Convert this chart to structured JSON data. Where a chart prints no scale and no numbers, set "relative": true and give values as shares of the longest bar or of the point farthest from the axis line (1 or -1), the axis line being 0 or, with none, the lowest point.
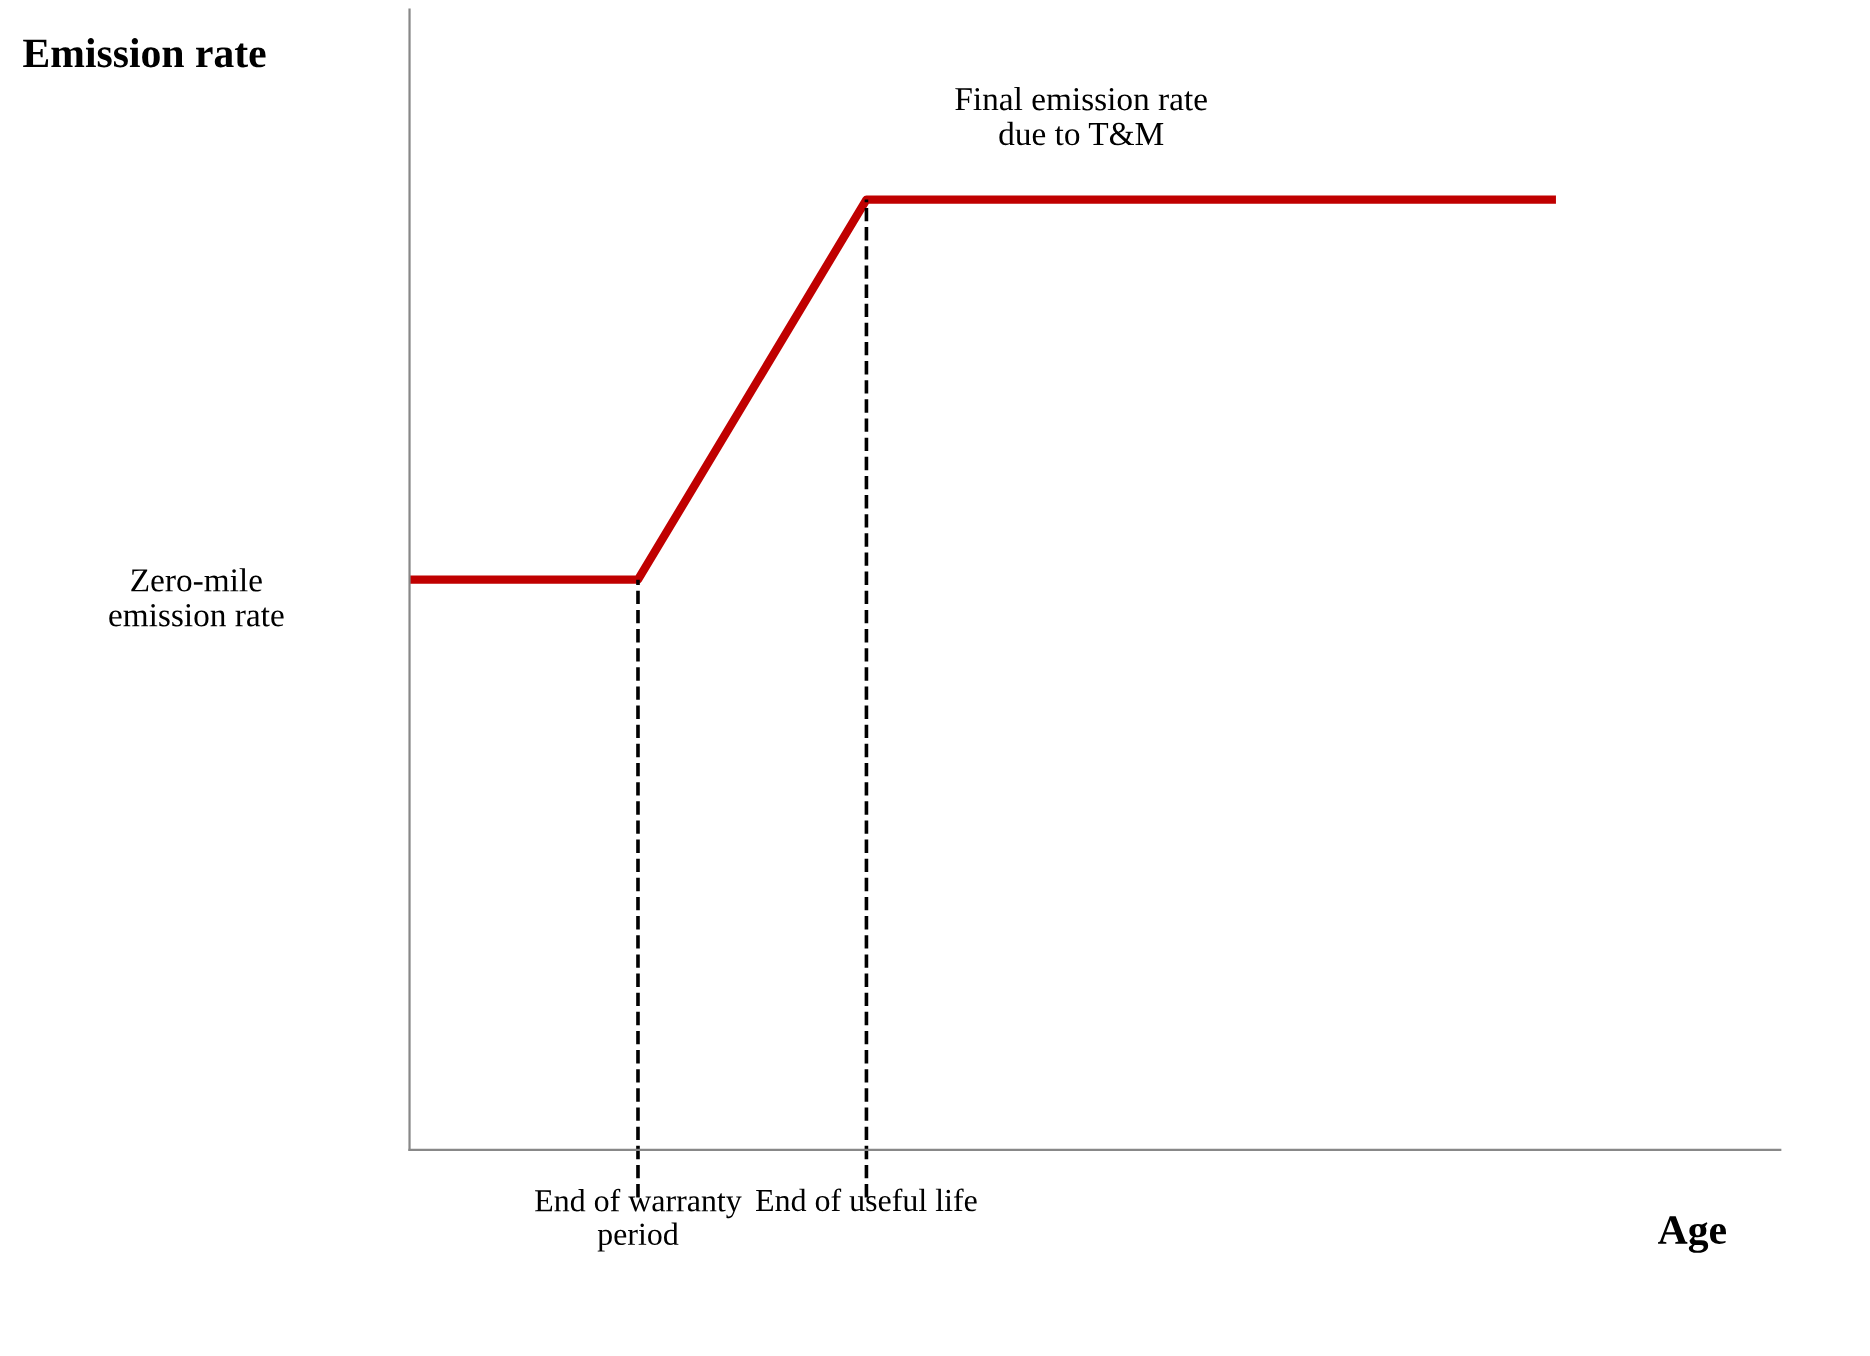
{
  "chart_data": {
    "type": "line",
    "relative": true,
    "xlabel": "Age",
    "ylabel": "Emission rate",
    "categories": [
      null,
      "End of warranty\nperiod",
      "End of useful life",
      null,
      null,
      null
    ],
    "series": [
      {
        "color": "#c00000",
        "values": [
          0.6,
          0.6,
          1,
          1,
          1,
          1
        ]
      }
    ],
    "ref_lines": [
      {
        "axis": "x",
        "value": "End of warranty\nperiod",
        "line_style": "dashed",
        "color": "#000000"
      },
      {
        "axis": "x",
        "value": "End of useful life",
        "line_style": "dashed",
        "color": "#000000"
      }
    ],
    "annotations": [
      "Zero-mile\nemission rate",
      {
        "text": "Final emission rate\ndue to T&M",
        "y": 1
      }
    ],
    "marker": "none",
    "line_style": "solid",
    "tick_labels": "x"
  }
}
